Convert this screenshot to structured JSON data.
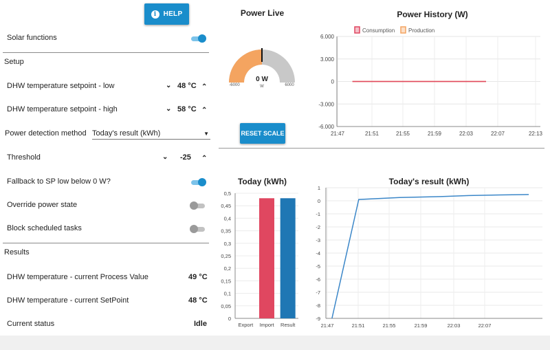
{
  "help_button": {
    "label": "HELP",
    "icon": "info-icon"
  },
  "settings": {
    "solar_functions": {
      "label": "Solar functions",
      "on": true
    },
    "setup_title": "Setup",
    "dhw_low": {
      "label": "DHW temperature setpoint - low",
      "value": "48 °C"
    },
    "dhw_high": {
      "label": "DHW temperature setpoint - high",
      "value": "58 °C"
    },
    "power_detection": {
      "label": "Power detection method",
      "value": "Today's result (kWh)"
    },
    "threshold": {
      "label": "Threshold",
      "value": "-25"
    },
    "fallback": {
      "label": "Fallback to SP low below 0 W?",
      "on": true
    },
    "override": {
      "label": "Override power state",
      "on": false
    },
    "block": {
      "label": "Block scheduled tasks",
      "on": false
    },
    "results_title": "Results",
    "process_value": {
      "label": "DHW temperature - current Process Value",
      "value": "49 °C"
    },
    "setpoint": {
      "label": "DHW temperature - current SetPoint",
      "value": "48 °C"
    },
    "status": {
      "label": "Current status",
      "value": "Idle"
    }
  },
  "power_live": {
    "title": "Power Live",
    "value": "0 W",
    "unit": "W",
    "min": "-6000",
    "max": "6000",
    "fraction": 0.5
  },
  "reset_button": {
    "label": "RESET SCALE"
  },
  "colors": {
    "accent": "#1a8dcb",
    "consumption": "#e04760",
    "production": "#f4a460",
    "bar_import": "#e04760",
    "bar_result": "#1f77b4",
    "line": "#3a86c8"
  },
  "chart_data": [
    {
      "type": "line",
      "title": "Power History (W)",
      "legend": [
        "Consumption",
        "Production"
      ],
      "x_ticks": [
        "21:47",
        "21:51",
        "21:55",
        "21:59",
        "22:03",
        "22:07",
        "22:13"
      ],
      "y_ticks": [
        "6.000",
        "3.000",
        "0",
        "-3.000",
        "-6.000"
      ],
      "ylim": [
        -6000,
        6000
      ],
      "series": [
        {
          "name": "Consumption",
          "x": [
            0.1,
            1.0
          ],
          "values": [
            0,
            0
          ]
        },
        {
          "name": "Production",
          "x": [
            0.1,
            1.0
          ],
          "values": [
            0,
            0
          ]
        }
      ]
    },
    {
      "type": "bar",
      "title": "Today (kWh)",
      "categories": [
        "Export",
        "Import",
        "Result"
      ],
      "values": [
        0,
        0.48,
        0.48
      ],
      "y_ticks": [
        "0,5",
        "0,45",
        "0,4",
        "0,35",
        "0,3",
        "0,25",
        "0,2",
        "0,15",
        "0,1",
        "0,05",
        "0"
      ],
      "ylim": [
        0,
        0.5
      ]
    },
    {
      "type": "line",
      "title": "Today's result (kWh)",
      "x_ticks": [
        "21:47",
        "21:51",
        "21:55",
        "21:59",
        "22:03",
        "22:07"
      ],
      "y_ticks": [
        "1",
        "0",
        "-1",
        "-2",
        "-3",
        "-4",
        "-5",
        "-6",
        "-7",
        "-8",
        "-9"
      ],
      "ylim": [
        -9,
        1
      ],
      "series": [
        {
          "name": "Result",
          "x": [
            0.15,
            1.0,
            2.3,
            3.6,
            4.5,
            5.5,
            6.4
          ],
          "values": [
            -9,
            0.1,
            0.25,
            0.32,
            0.4,
            0.45,
            0.48
          ]
        }
      ]
    }
  ]
}
